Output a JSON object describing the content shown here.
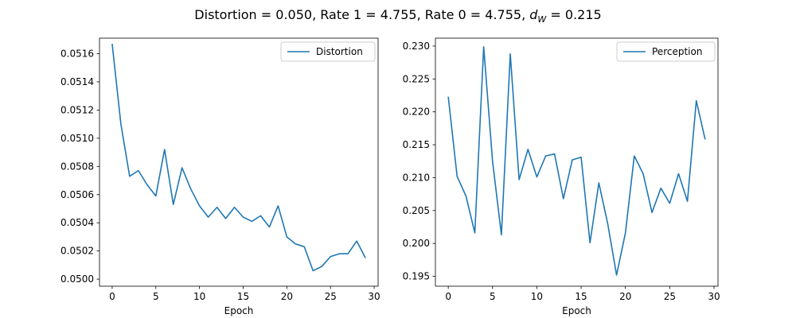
{
  "title": {
    "prefix": "Distortion = 0.050, Rate 1 = 4.755, Rate 0 = 4.755, ",
    "sym": "d",
    "sub": "W",
    "suffix": " = 0.215"
  },
  "line_color": "#1f77b4",
  "chart_data": [
    {
      "type": "line",
      "xlabel": "Epoch",
      "ylabel": "",
      "xlim": [
        -1.45,
        30.45
      ],
      "ylim": [
        0.04995,
        0.05171
      ],
      "xticks": [
        0,
        5,
        10,
        15,
        20,
        25,
        30
      ],
      "xtick_labels": [
        "0",
        "5",
        "10",
        "15",
        "20",
        "25",
        "30"
      ],
      "yticks": [
        0.05,
        0.0502,
        0.0504,
        0.0506,
        0.0508,
        0.051,
        0.0512,
        0.0514,
        0.0516
      ],
      "ytick_labels": [
        "0.0500",
        "0.0502",
        "0.0504",
        "0.0506",
        "0.0508",
        "0.0510",
        "0.0512",
        "0.0514",
        "0.0516"
      ],
      "grid": false,
      "legend_position": "top-right",
      "series": [
        {
          "name": "Distortion",
          "x": [
            0,
            1,
            2,
            3,
            4,
            5,
            6,
            7,
            8,
            9,
            10,
            11,
            12,
            13,
            14,
            15,
            16,
            17,
            18,
            19,
            20,
            21,
            22,
            23,
            24,
            25,
            26,
            27,
            28,
            29
          ],
          "y": [
            0.05167,
            0.0511,
            0.05073,
            0.05077,
            0.05067,
            0.05059,
            0.05092,
            0.05053,
            0.05079,
            0.05064,
            0.05052,
            0.05044,
            0.05051,
            0.05043,
            0.05051,
            0.05044,
            0.05041,
            0.05045,
            0.05037,
            0.05052,
            0.0503,
            0.05025,
            0.05023,
            0.05006,
            0.05009,
            0.05016,
            0.05018,
            0.05018,
            0.05027,
            0.05015
          ]
        }
      ]
    },
    {
      "type": "line",
      "xlabel": "Epoch",
      "ylabel": "",
      "xlim": [
        -1.45,
        30.45
      ],
      "ylim": [
        0.1935,
        0.2312
      ],
      "xticks": [
        0,
        5,
        10,
        15,
        20,
        25,
        30
      ],
      "xtick_labels": [
        "0",
        "5",
        "10",
        "15",
        "20",
        "25",
        "30"
      ],
      "yticks": [
        0.195,
        0.2,
        0.205,
        0.21,
        0.215,
        0.22,
        0.225,
        0.23
      ],
      "ytick_labels": [
        "0.195",
        "0.200",
        "0.205",
        "0.210",
        "0.215",
        "0.220",
        "0.225",
        "0.230"
      ],
      "grid": false,
      "legend_position": "top-right",
      "series": [
        {
          "name": "Perception",
          "x": [
            0,
            1,
            2,
            3,
            4,
            5,
            6,
            7,
            8,
            9,
            10,
            11,
            12,
            13,
            14,
            15,
            16,
            17,
            18,
            19,
            20,
            21,
            22,
            23,
            24,
            25,
            26,
            27,
            28,
            29
          ],
          "y": [
            0.2223,
            0.2102,
            0.2072,
            0.2016,
            0.2299,
            0.2125,
            0.2013,
            0.2288,
            0.2097,
            0.2143,
            0.2101,
            0.2133,
            0.2136,
            0.2068,
            0.2127,
            0.2131,
            0.2001,
            0.2092,
            0.203,
            0.1952,
            0.2016,
            0.2133,
            0.2106,
            0.2047,
            0.2084,
            0.2061,
            0.2106,
            0.2064,
            0.2217,
            0.2158
          ]
        }
      ]
    }
  ]
}
